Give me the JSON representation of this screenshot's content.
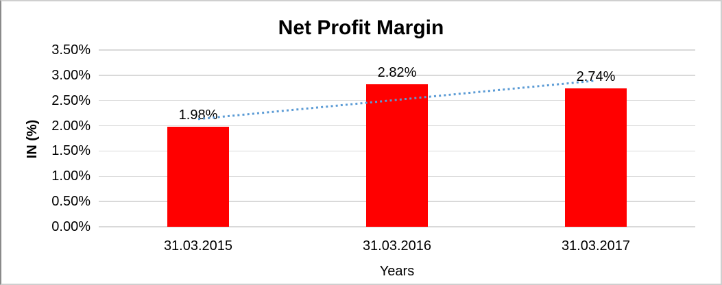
{
  "chart_data": {
    "type": "bar",
    "title": "Net Profit Margin",
    "xlabel": "Years",
    "ylabel": "IN (%)",
    "categories": [
      "31.03.2015",
      "31.03.2016",
      "31.03.2017"
    ],
    "values": [
      1.98,
      2.82,
      2.74
    ],
    "data_labels": [
      "1.98%",
      "2.82%",
      "2.74%"
    ],
    "ylim": [
      0,
      3.5
    ],
    "y_tick_step": 0.5,
    "y_tick_labels": [
      "0.00%",
      "0.50%",
      "1.00%",
      "1.50%",
      "2.00%",
      "2.50%",
      "3.00%",
      "3.50%"
    ],
    "grid": true,
    "legend": "none",
    "bar_color": "#FF0000",
    "trendline": {
      "type": "linear",
      "style": "dotted",
      "color": "#5B9BD5"
    }
  },
  "colors": {
    "gridline": "#D9D9D9",
    "text": "#000000",
    "background": "#FFFFFF",
    "border": "#CFCFCF"
  }
}
